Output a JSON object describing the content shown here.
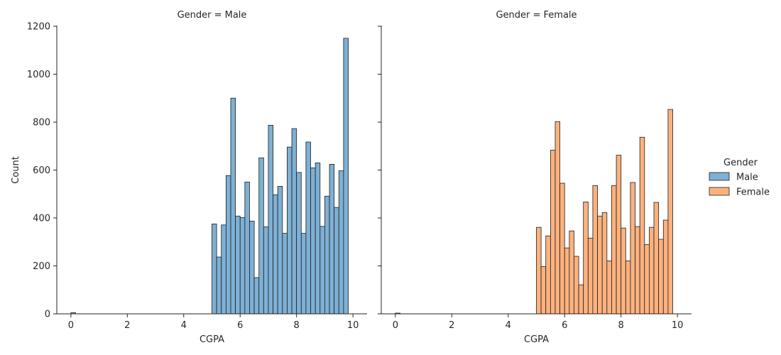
{
  "chart_data": {
    "type": "bar",
    "subtype": "histogram-facet",
    "ylabel": "Count",
    "ylim": [
      0,
      1200
    ],
    "yticks": [
      0,
      200,
      400,
      600,
      800,
      1000,
      1200
    ],
    "xlim": [
      -0.5,
      10.5
    ],
    "xticks": [
      0,
      2,
      4,
      6,
      8,
      10
    ],
    "bin_width": 0.1667,
    "grid": false,
    "legend": {
      "title": "Gender",
      "placement": "right",
      "entries": [
        {
          "label": "Male",
          "color": "#7eb0d5"
        },
        {
          "label": "Female",
          "color": "#fdb27e"
        }
      ]
    },
    "panels": [
      {
        "title": "Gender = Male",
        "xlabel": "CGPA",
        "color": "#7eb0d5",
        "bins": [
          {
            "x": 0.0,
            "count": 5
          },
          {
            "x": 5.0,
            "count": 375
          },
          {
            "x": 5.1667,
            "count": 237
          },
          {
            "x": 5.3333,
            "count": 371
          },
          {
            "x": 5.5,
            "count": 577
          },
          {
            "x": 5.6667,
            "count": 900
          },
          {
            "x": 5.8333,
            "count": 408
          },
          {
            "x": 6.0,
            "count": 402
          },
          {
            "x": 6.1667,
            "count": 550
          },
          {
            "x": 6.3333,
            "count": 387
          },
          {
            "x": 6.5,
            "count": 151
          },
          {
            "x": 6.6667,
            "count": 651
          },
          {
            "x": 6.8333,
            "count": 363
          },
          {
            "x": 7.0,
            "count": 787
          },
          {
            "x": 7.1667,
            "count": 497
          },
          {
            "x": 7.3333,
            "count": 532
          },
          {
            "x": 7.5,
            "count": 336
          },
          {
            "x": 7.6667,
            "count": 696
          },
          {
            "x": 7.8333,
            "count": 773
          },
          {
            "x": 8.0,
            "count": 590
          },
          {
            "x": 8.1667,
            "count": 336
          },
          {
            "x": 8.3333,
            "count": 717
          },
          {
            "x": 8.5,
            "count": 609
          },
          {
            "x": 8.6667,
            "count": 630
          },
          {
            "x": 8.8333,
            "count": 365
          },
          {
            "x": 9.0,
            "count": 491
          },
          {
            "x": 9.1667,
            "count": 624
          },
          {
            "x": 9.3333,
            "count": 444
          },
          {
            "x": 9.5,
            "count": 597
          },
          {
            "x": 9.6667,
            "count": 1150
          }
        ]
      },
      {
        "title": "Gender = Female",
        "xlabel": "CGPA",
        "color": "#fdb27e",
        "bins": [
          {
            "x": 0.0,
            "count": 3
          },
          {
            "x": 5.0,
            "count": 361
          },
          {
            "x": 5.1667,
            "count": 197
          },
          {
            "x": 5.3333,
            "count": 325
          },
          {
            "x": 5.5,
            "count": 683
          },
          {
            "x": 5.6667,
            "count": 802
          },
          {
            "x": 5.8333,
            "count": 545
          },
          {
            "x": 6.0,
            "count": 275
          },
          {
            "x": 6.1667,
            "count": 346
          },
          {
            "x": 6.3333,
            "count": 240
          },
          {
            "x": 6.5,
            "count": 121
          },
          {
            "x": 6.6667,
            "count": 467
          },
          {
            "x": 6.8333,
            "count": 316
          },
          {
            "x": 7.0,
            "count": 535
          },
          {
            "x": 7.1667,
            "count": 408
          },
          {
            "x": 7.3333,
            "count": 423
          },
          {
            "x": 7.5,
            "count": 221
          },
          {
            "x": 7.6667,
            "count": 535
          },
          {
            "x": 7.8333,
            "count": 662
          },
          {
            "x": 8.0,
            "count": 358
          },
          {
            "x": 8.1667,
            "count": 221
          },
          {
            "x": 8.3333,
            "count": 548
          },
          {
            "x": 8.5,
            "count": 364
          },
          {
            "x": 8.6667,
            "count": 737
          },
          {
            "x": 8.8333,
            "count": 289
          },
          {
            "x": 9.0,
            "count": 361
          },
          {
            "x": 9.1667,
            "count": 465
          },
          {
            "x": 9.3333,
            "count": 311
          },
          {
            "x": 9.5,
            "count": 391
          },
          {
            "x": 9.6667,
            "count": 853
          }
        ]
      }
    ]
  }
}
